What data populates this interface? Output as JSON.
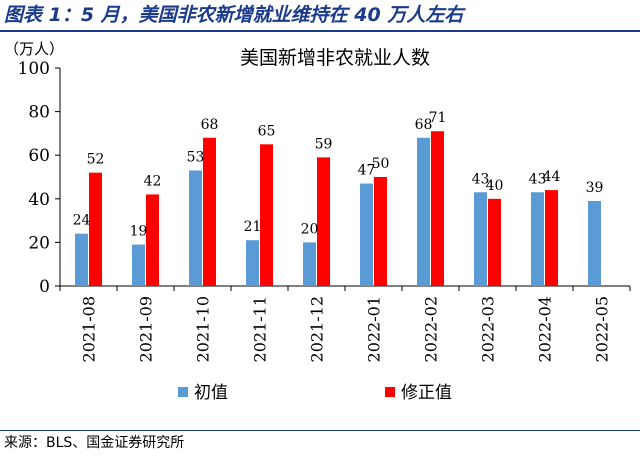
{
  "figure_title": "图表 1：5 月，美国非农新增就业维持在 40 万人左右",
  "source_note": "来源：BLS、国金证券研究所",
  "colors": {
    "initial": "#5b9bd5",
    "revised": "#ff0000",
    "title_blue": "#1a3a8c"
  },
  "chart_data": {
    "type": "bar",
    "title": "美国新增非农就业人数",
    "ylabel": "（万人）",
    "xlabel": "",
    "ylim": [
      0,
      100
    ],
    "yticks": [
      0,
      20,
      40,
      60,
      80,
      100
    ],
    "grid": false,
    "legend_position": "bottom",
    "categories": [
      "2021-08",
      "2021-09",
      "2021-10",
      "2021-11",
      "2021-12",
      "2022-01",
      "2022-02",
      "2022-03",
      "2022-04",
      "2022-05"
    ],
    "series": [
      {
        "name": "初值",
        "values": [
          24,
          19,
          53,
          21,
          20,
          47,
          68,
          43,
          43,
          39
        ]
      },
      {
        "name": "修正值",
        "values": [
          52,
          42,
          68,
          65,
          59,
          50,
          71,
          40,
          44,
          null
        ]
      }
    ]
  }
}
